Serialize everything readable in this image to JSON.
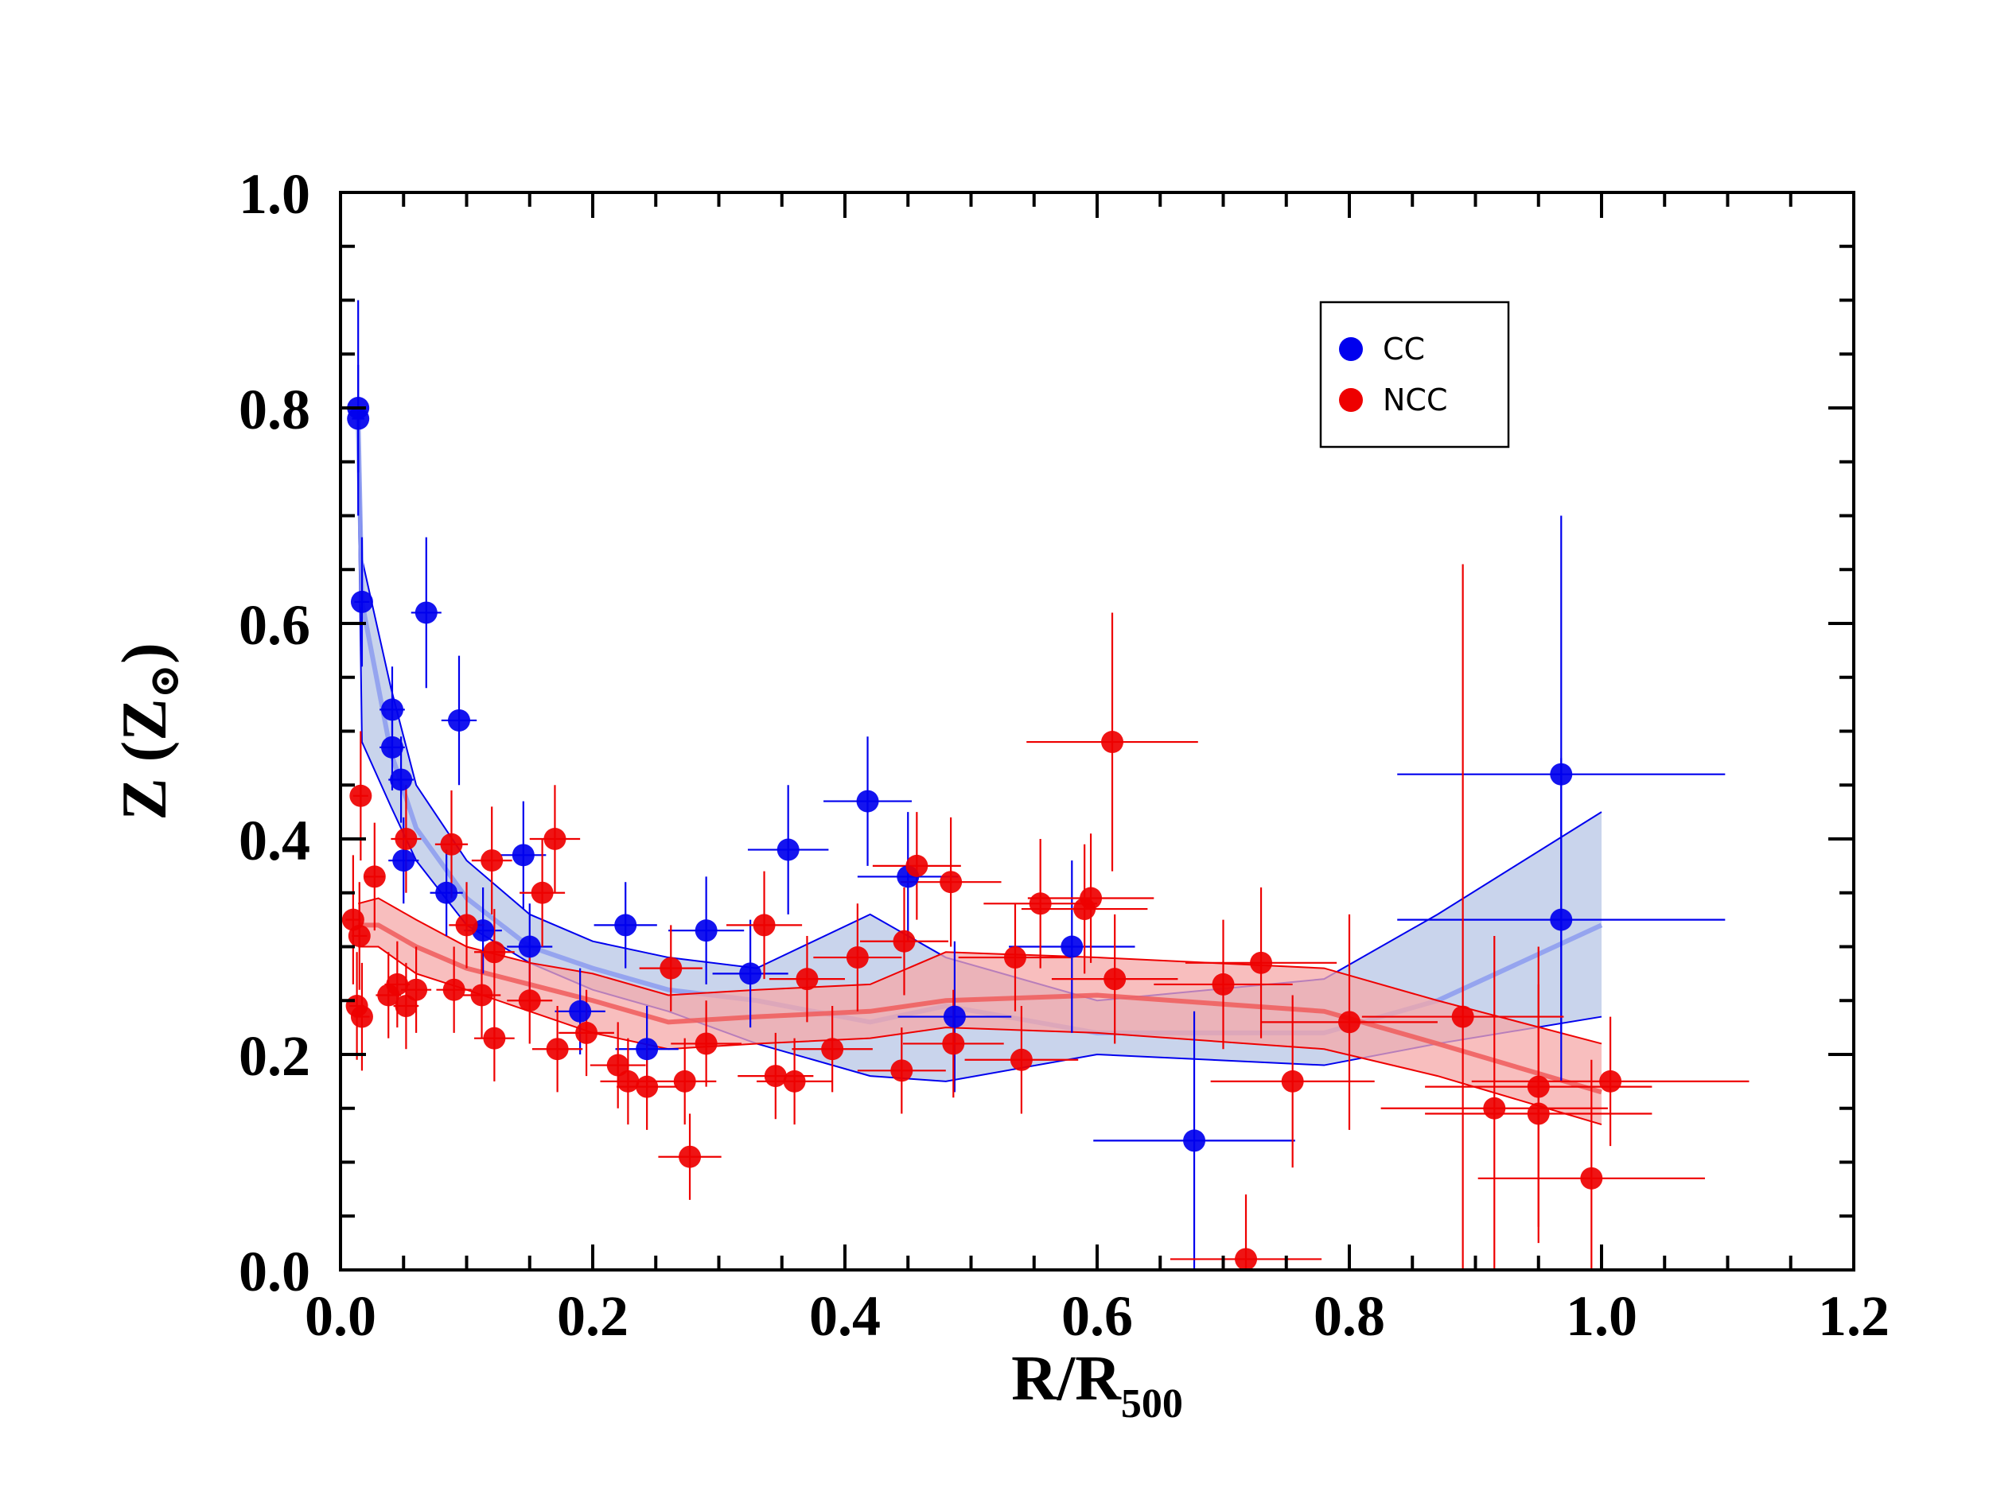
{
  "chart_data": {
    "type": "scatter",
    "title": "",
    "xlabel": "R/R",
    "xlabel_sub": "500",
    "ylabel": "Z (Z",
    "ylabel_symbol": "⊙",
    "ylabel_close": ")",
    "xlim": [
      0.0,
      1.2
    ],
    "ylim": [
      0.0,
      1.0
    ],
    "xticks": [
      "0.0",
      "0.2",
      "0.4",
      "0.6",
      "0.8",
      "1.0",
      "1.2"
    ],
    "yticks": [
      "0.0",
      "0.2",
      "0.4",
      "0.6",
      "0.8",
      "1.0"
    ],
    "legend_position": "top-right",
    "colors": {
      "CC": "#0000ee",
      "NCC": "#ee0000",
      "CC_band": "#b7c6e6",
      "NCC_band": "#f5a8a8",
      "CC_line": "#8f9ff0",
      "NCC_line": "#f06060"
    },
    "series": [
      {
        "name": "CC",
        "points": [
          [
            0.014,
            0.8,
            0.005,
            0.1
          ],
          [
            0.014,
            0.79,
            0.005,
            0.05
          ],
          [
            0.017,
            0.62,
            0.006,
            0.06
          ],
          [
            0.041,
            0.52,
            0.01,
            0.04
          ],
          [
            0.041,
            0.485,
            0.01,
            0.04
          ],
          [
            0.048,
            0.455,
            0.01,
            0.04
          ],
          [
            0.068,
            0.61,
            0.012,
            0.07
          ],
          [
            0.094,
            0.51,
            0.014,
            0.06
          ],
          [
            0.05,
            0.38,
            0.012,
            0.04
          ],
          [
            0.084,
            0.35,
            0.013,
            0.04
          ],
          [
            0.113,
            0.315,
            0.015,
            0.04
          ],
          [
            0.145,
            0.385,
            0.018,
            0.05
          ],
          [
            0.15,
            0.3,
            0.018,
            0.04
          ],
          [
            0.19,
            0.24,
            0.02,
            0.04
          ],
          [
            0.226,
            0.32,
            0.025,
            0.04
          ],
          [
            0.243,
            0.205,
            0.025,
            0.04
          ],
          [
            0.29,
            0.315,
            0.03,
            0.05
          ],
          [
            0.325,
            0.275,
            0.03,
            0.05
          ],
          [
            0.355,
            0.39,
            0.032,
            0.06
          ],
          [
            0.418,
            0.435,
            0.035,
            0.06
          ],
          [
            0.45,
            0.365,
            0.04,
            0.06
          ],
          [
            0.487,
            0.235,
            0.045,
            0.07
          ],
          [
            0.58,
            0.3,
            0.05,
            0.08
          ],
          [
            0.677,
            0.12,
            0.08,
            0.12
          ],
          [
            0.968,
            0.46,
            0.13,
            0.24
          ],
          [
            0.968,
            0.325,
            0.13,
            0.15
          ]
        ]
      },
      {
        "name": "NCC",
        "points": [
          [
            0.016,
            0.44,
            0.006,
            0.06
          ],
          [
            0.01,
            0.325,
            0.006,
            0.06
          ],
          [
            0.015,
            0.31,
            0.006,
            0.05
          ],
          [
            0.027,
            0.365,
            0.008,
            0.05
          ],
          [
            0.013,
            0.245,
            0.006,
            0.05
          ],
          [
            0.017,
            0.235,
            0.006,
            0.05
          ],
          [
            0.038,
            0.255,
            0.01,
            0.04
          ],
          [
            0.045,
            0.265,
            0.01,
            0.04
          ],
          [
            0.052,
            0.245,
            0.01,
            0.04
          ],
          [
            0.06,
            0.26,
            0.012,
            0.04
          ],
          [
            0.052,
            0.4,
            0.012,
            0.05
          ],
          [
            0.088,
            0.395,
            0.013,
            0.05
          ],
          [
            0.1,
            0.32,
            0.014,
            0.04
          ],
          [
            0.09,
            0.26,
            0.014,
            0.04
          ],
          [
            0.112,
            0.255,
            0.015,
            0.04
          ],
          [
            0.12,
            0.38,
            0.016,
            0.05
          ],
          [
            0.122,
            0.295,
            0.016,
            0.04
          ],
          [
            0.122,
            0.215,
            0.016,
            0.04
          ],
          [
            0.16,
            0.35,
            0.018,
            0.05
          ],
          [
            0.17,
            0.4,
            0.02,
            0.05
          ],
          [
            0.15,
            0.25,
            0.018,
            0.04
          ],
          [
            0.172,
            0.205,
            0.02,
            0.04
          ],
          [
            0.195,
            0.22,
            0.022,
            0.04
          ],
          [
            0.22,
            0.19,
            0.022,
            0.04
          ],
          [
            0.228,
            0.175,
            0.022,
            0.04
          ],
          [
            0.243,
            0.17,
            0.024,
            0.04
          ],
          [
            0.262,
            0.28,
            0.025,
            0.04
          ],
          [
            0.273,
            0.175,
            0.025,
            0.04
          ],
          [
            0.277,
            0.105,
            0.025,
            0.04
          ],
          [
            0.29,
            0.21,
            0.028,
            0.04
          ],
          [
            0.336,
            0.32,
            0.03,
            0.05
          ],
          [
            0.345,
            0.18,
            0.03,
            0.04
          ],
          [
            0.36,
            0.175,
            0.03,
            0.04
          ],
          [
            0.37,
            0.27,
            0.03,
            0.04
          ],
          [
            0.39,
            0.205,
            0.032,
            0.04
          ],
          [
            0.41,
            0.29,
            0.035,
            0.05
          ],
          [
            0.445,
            0.185,
            0.035,
            0.04
          ],
          [
            0.447,
            0.305,
            0.035,
            0.05
          ],
          [
            0.457,
            0.375,
            0.035,
            0.05
          ],
          [
            0.484,
            0.36,
            0.04,
            0.06
          ],
          [
            0.486,
            0.21,
            0.04,
            0.05
          ],
          [
            0.535,
            0.29,
            0.045,
            0.05
          ],
          [
            0.54,
            0.195,
            0.045,
            0.05
          ],
          [
            0.555,
            0.34,
            0.045,
            0.06
          ],
          [
            0.59,
            0.335,
            0.05,
            0.06
          ],
          [
            0.595,
            0.345,
            0.05,
            0.06
          ],
          [
            0.612,
            0.49,
            0.068,
            0.12
          ],
          [
            0.614,
            0.27,
            0.05,
            0.06
          ],
          [
            0.7,
            0.265,
            0.055,
            0.06
          ],
          [
            0.718,
            0.01,
            0.06,
            0.06
          ],
          [
            0.73,
            0.285,
            0.06,
            0.07
          ],
          [
            0.755,
            0.175,
            0.065,
            0.08
          ],
          [
            0.8,
            0.23,
            0.07,
            0.1
          ],
          [
            0.89,
            0.235,
            0.08,
            0.42
          ],
          [
            0.915,
            0.15,
            0.09,
            0.16
          ],
          [
            0.95,
            0.17,
            0.09,
            0.13
          ],
          [
            0.95,
            0.145,
            0.09,
            0.12
          ],
          [
            0.992,
            0.085,
            0.09,
            0.11
          ],
          [
            1.007,
            0.175,
            0.11,
            0.06
          ]
        ]
      }
    ],
    "bands": [
      {
        "name": "CC",
        "x": [
          0.014,
          0.017,
          0.04,
          0.06,
          0.1,
          0.15,
          0.2,
          0.26,
          0.33,
          0.42,
          0.48,
          0.6,
          0.78,
          0.87,
          1.0
        ],
        "lo": [
          0.74,
          0.49,
          0.43,
          0.38,
          0.32,
          0.285,
          0.26,
          0.24,
          0.21,
          0.18,
          0.175,
          0.2,
          0.19,
          0.21,
          0.235
        ],
        "mid": [
          0.79,
          0.62,
          0.48,
          0.41,
          0.345,
          0.3,
          0.28,
          0.26,
          0.25,
          0.23,
          0.245,
          0.22,
          0.22,
          0.25,
          0.32
        ],
        "hi": [
          0.8,
          0.66,
          0.54,
          0.45,
          0.38,
          0.33,
          0.305,
          0.29,
          0.28,
          0.33,
          0.29,
          0.25,
          0.27,
          0.33,
          0.425
        ]
      },
      {
        "name": "NCC",
        "x": [
          0.014,
          0.03,
          0.06,
          0.1,
          0.15,
          0.2,
          0.26,
          0.33,
          0.42,
          0.48,
          0.6,
          0.78,
          0.87,
          1.0
        ],
        "lo": [
          0.3,
          0.3,
          0.275,
          0.26,
          0.24,
          0.22,
          0.205,
          0.21,
          0.215,
          0.225,
          0.22,
          0.205,
          0.18,
          0.135
        ],
        "mid": [
          0.32,
          0.32,
          0.3,
          0.28,
          0.265,
          0.25,
          0.23,
          0.235,
          0.24,
          0.25,
          0.255,
          0.24,
          0.21,
          0.165
        ],
        "hi": [
          0.34,
          0.345,
          0.325,
          0.3,
          0.285,
          0.275,
          0.255,
          0.26,
          0.265,
          0.295,
          0.29,
          0.28,
          0.25,
          0.21
        ]
      }
    ]
  }
}
